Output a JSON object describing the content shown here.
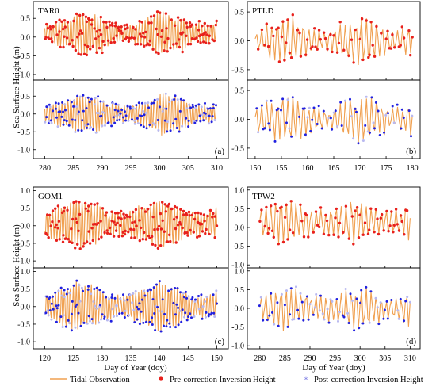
{
  "figure": {
    "ylabel": "Sea Surface Height (m)",
    "xlabel": "Day of Year (doy)",
    "legend": {
      "tidal": "Tidal Observation",
      "pre": "Pre-correction Inversion Height",
      "post": "Post-correction Inversion Height"
    },
    "colors": {
      "tidal": "#f0a050",
      "pre": "#e8201c",
      "post": "#2020e0",
      "post_light": "#b8b8f0"
    }
  },
  "chart_data": [
    {
      "type": "line",
      "panel": "a",
      "station": "TAR0",
      "letter": "(a)",
      "xlim": [
        278,
        312
      ],
      "xticks": [
        280,
        285,
        290,
        295,
        300,
        305,
        310
      ],
      "top": {
        "ylim": [
          -1.15,
          0.95
        ],
        "yticks": [
          -1.0,
          -0.5,
          0.0,
          0.5
        ],
        "series": [
          "tidal",
          "pre"
        ],
        "signal": {
          "x_start": 280,
          "x_end": 310,
          "samples_per_day": 8,
          "cycles_per_day": 1.93,
          "base": 0.1,
          "amp": 0.22,
          "envelope_amp": 0.33,
          "envelope_period_days": 14,
          "envelope_phase_day": 287,
          "noise": 0.12
        }
      },
      "bottom": {
        "ylim": [
          -1.25,
          0.95
        ],
        "yticks": [
          -1.0,
          -0.5,
          0.0,
          0.5
        ],
        "series": [
          "tidal",
          "post"
        ],
        "signal": {
          "x_start": 280,
          "x_end": 310,
          "samples_per_day": 8,
          "cycles_per_day": 1.93,
          "base": 0.0,
          "amp": 0.22,
          "envelope_amp": 0.33,
          "envelope_period_days": 14,
          "envelope_phase_day": 287,
          "noise": 0.12
        }
      }
    },
    {
      "type": "line",
      "panel": "b",
      "station": "PTLD",
      "letter": "(b)",
      "xlim": [
        148.5,
        181.5
      ],
      "xticks": [
        150,
        155,
        160,
        165,
        170,
        175,
        180
      ],
      "top": {
        "ylim": [
          -0.68,
          0.68
        ],
        "yticks": [
          -0.5,
          0.0,
          0.5
        ],
        "series": [
          "tidal",
          "pre"
        ],
        "signal": {
          "x_start": 150,
          "x_end": 180,
          "samples_per_day": 3.2,
          "cycles_per_day": 1.0,
          "base": 0.0,
          "amp": 0.18,
          "envelope_amp": 0.22,
          "envelope_period_days": 14,
          "envelope_phase_day": 156,
          "noise": 0.08
        }
      },
      "bottom": {
        "ylim": [
          -0.68,
          0.68
        ],
        "yticks": [
          -0.5,
          0.0,
          0.5
        ],
        "series": [
          "tidal",
          "post"
        ],
        "signal": {
          "x_start": 150,
          "x_end": 180,
          "samples_per_day": 3.2,
          "cycles_per_day": 1.0,
          "base": 0.0,
          "amp": 0.18,
          "envelope_amp": 0.22,
          "envelope_period_days": 14,
          "envelope_phase_day": 156,
          "noise": 0.08
        }
      }
    },
    {
      "type": "line",
      "panel": "c",
      "station": "GOM1",
      "letter": "(c)",
      "xlim": [
        118,
        152
      ],
      "xticks": [
        120,
        125,
        130,
        135,
        140,
        145,
        150
      ],
      "top": {
        "ylim": [
          -1.2,
          1.1
        ],
        "yticks": [
          -1.0,
          -0.5,
          0.0,
          0.5,
          1.0
        ],
        "series": [
          "tidal",
          "pre"
        ],
        "signal": {
          "x_start": 120,
          "x_end": 150,
          "samples_per_day": 8,
          "cycles_per_day": 1.93,
          "base": 0.05,
          "amp": 0.3,
          "envelope_amp": 0.38,
          "envelope_period_days": 14,
          "envelope_phase_day": 126,
          "noise": 0.14
        }
      },
      "bottom": {
        "ylim": [
          -1.2,
          1.1
        ],
        "yticks": [
          -1.0,
          -0.5,
          0.0,
          0.5,
          1.0
        ],
        "series": [
          "tidal",
          "post"
        ],
        "signal": {
          "x_start": 120,
          "x_end": 150,
          "samples_per_day": 8,
          "cycles_per_day": 1.93,
          "base": 0.0,
          "amp": 0.3,
          "envelope_amp": 0.38,
          "envelope_period_days": 14,
          "envelope_phase_day": 126,
          "noise": 0.14
        }
      }
    },
    {
      "type": "line",
      "panel": "d",
      "station": "TPW2",
      "letter": "(d)",
      "xlim": [
        277.5,
        312
      ],
      "xticks": [
        280,
        285,
        290,
        295,
        300,
        305,
        310
      ],
      "top": {
        "ylim": [
          -1.08,
          1.08
        ],
        "yticks": [
          -1.0,
          -0.5,
          0.0,
          0.5,
          1.0
        ],
        "series": [
          "tidal",
          "pre"
        ],
        "signal": {
          "x_start": 280,
          "x_end": 310,
          "samples_per_day": 3.2,
          "cycles_per_day": 1.0,
          "base": 0.15,
          "amp": 0.3,
          "envelope_amp": 0.25,
          "envelope_period_days": 14,
          "envelope_phase_day": 285,
          "noise": 0.13
        }
      },
      "bottom": {
        "ylim": [
          -1.08,
          1.08
        ],
        "yticks": [
          -1.0,
          -0.5,
          0.0,
          0.5,
          1.0
        ],
        "series": [
          "tidal",
          "post"
        ],
        "signal": {
          "x_start": 280,
          "x_end": 310,
          "samples_per_day": 3.2,
          "cycles_per_day": 1.0,
          "base": 0.0,
          "amp": 0.3,
          "envelope_amp": 0.25,
          "envelope_period_days": 14,
          "envelope_phase_day": 285,
          "noise": 0.13
        }
      }
    }
  ]
}
